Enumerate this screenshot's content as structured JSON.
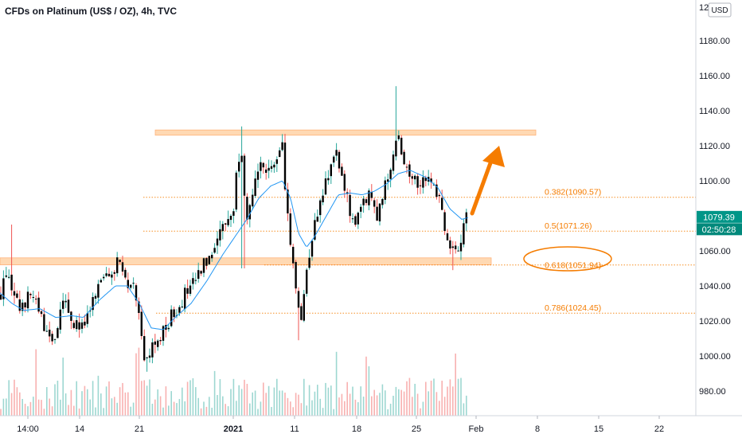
{
  "chart_data": {
    "type": "candlestick",
    "title": "CFDs on Platinum (US$ / OZ), 4h, TVC",
    "currency": "USD",
    "ylim": [
      960,
      1200
    ],
    "y_ticks": [
      980,
      1000,
      1020,
      1040,
      1060,
      1080,
      1100,
      1120,
      1140,
      1160,
      1180
    ],
    "y_tick_labels": [
      "980.00",
      "1000.00",
      "1020.00",
      "1040.00",
      "1060.00",
      "1080.00",
      "1100.00",
      "1120.00",
      "1140.00",
      "1160.00",
      "1180.00"
    ],
    "y_top_partial_label": "120",
    "x_ticks": [
      {
        "label": "14:00",
        "bold": false
      },
      {
        "label": "14",
        "bold": false
      },
      {
        "label": "21",
        "bold": false
      },
      {
        "label": "2021",
        "bold": true
      },
      {
        "label": "11",
        "bold": false
      },
      {
        "label": "18",
        "bold": false
      },
      {
        "label": "25",
        "bold": false
      },
      {
        "label": "Feb",
        "bold": false
      },
      {
        "label": "8",
        "bold": false
      },
      {
        "label": "15",
        "bold": false
      },
      {
        "label": "22",
        "bold": false
      }
    ],
    "price_anchors": [
      [
        0,
        1034
      ],
      [
        10,
        1052
      ],
      [
        15,
        1032
      ],
      [
        25,
        1028
      ],
      [
        40,
        1035
      ],
      [
        55,
        1018
      ],
      [
        65,
        1005
      ],
      [
        80,
        1030
      ],
      [
        92,
        1020
      ],
      [
        105,
        1015
      ],
      [
        115,
        1028
      ],
      [
        130,
        1045
      ],
      [
        140,
        1050
      ],
      [
        150,
        1053
      ],
      [
        160,
        1043
      ],
      [
        170,
        1038
      ],
      [
        178,
        1015
      ],
      [
        182,
        995
      ],
      [
        192,
        1005
      ],
      [
        200,
        1008
      ],
      [
        210,
        1018
      ],
      [
        220,
        1026
      ],
      [
        232,
        1035
      ],
      [
        242,
        1040
      ],
      [
        252,
        1048
      ],
      [
        262,
        1057
      ],
      [
        272,
        1068
      ],
      [
        285,
        1078
      ],
      [
        293,
        1082
      ],
      [
        298,
        1110
      ],
      [
        303,
        1122
      ],
      [
        310,
        1075
      ],
      [
        318,
        1090
      ],
      [
        325,
        1112
      ],
      [
        333,
        1100
      ],
      [
        340,
        1105
      ],
      [
        348,
        1115
      ],
      [
        355,
        1118
      ],
      [
        362,
        1075
      ],
      [
        366,
        1060
      ],
      [
        372,
        1040
      ],
      [
        378,
        1020
      ],
      [
        385,
        1048
      ],
      [
        393,
        1072
      ],
      [
        400,
        1083
      ],
      [
        408,
        1098
      ],
      [
        415,
        1110
      ],
      [
        422,
        1115
      ],
      [
        430,
        1100
      ],
      [
        440,
        1082
      ],
      [
        448,
        1075
      ],
      [
        455,
        1085
      ],
      [
        465,
        1092
      ],
      [
        475,
        1080
      ],
      [
        485,
        1098
      ],
      [
        492,
        1112
      ],
      [
        498,
        1128
      ],
      [
        505,
        1115
      ],
      [
        515,
        1105
      ],
      [
        525,
        1100
      ],
      [
        535,
        1103
      ],
      [
        545,
        1098
      ],
      [
        555,
        1085
      ],
      [
        562,
        1065
      ],
      [
        568,
        1058
      ],
      [
        575,
        1060
      ],
      [
        580,
        1068
      ],
      [
        584,
        1088
      ],
      [
        588,
        1079
      ]
    ],
    "ema_anchors": [
      [
        0,
        1036
      ],
      [
        15,
        1030
      ],
      [
        30,
        1026
      ],
      [
        50,
        1027
      ],
      [
        70,
        1022
      ],
      [
        90,
        1023
      ],
      [
        105,
        1022
      ],
      [
        125,
        1032
      ],
      [
        145,
        1040
      ],
      [
        160,
        1040
      ],
      [
        175,
        1030
      ],
      [
        190,
        1016
      ],
      [
        205,
        1015
      ],
      [
        220,
        1022
      ],
      [
        240,
        1030
      ],
      [
        260,
        1043
      ],
      [
        280,
        1058
      ],
      [
        295,
        1068
      ],
      [
        310,
        1078
      ],
      [
        325,
        1090
      ],
      [
        340,
        1097
      ],
      [
        355,
        1100
      ],
      [
        365,
        1090
      ],
      [
        375,
        1070
      ],
      [
        385,
        1062
      ],
      [
        395,
        1068
      ],
      [
        410,
        1080
      ],
      [
        425,
        1092
      ],
      [
        440,
        1093
      ],
      [
        455,
        1092
      ],
      [
        470,
        1094
      ],
      [
        485,
        1098
      ],
      [
        500,
        1104
      ],
      [
        515,
        1106
      ],
      [
        535,
        1102
      ],
      [
        550,
        1096
      ],
      [
        565,
        1084
      ],
      [
        580,
        1078
      ],
      [
        588,
        1079
      ]
    ],
    "zones": [
      {
        "x1": 195,
        "x2": 673,
        "y_low": 1126,
        "y_high": 1129
      },
      {
        "x1": 0,
        "x2": 617,
        "y_low": 1052,
        "y_high": 1056
      }
    ],
    "fib_levels": [
      {
        "value": 1090.57,
        "label": "0.382(1090.57)"
      },
      {
        "value": 1071.26,
        "label": "0.5(1071.26)"
      },
      {
        "value": 1051.94,
        "label": "0.618(1051.94)"
      },
      {
        "value": 1024.45,
        "label": "0.786(1024.45)"
      }
    ],
    "last_price": "1079.39",
    "countdown": "02:50:28",
    "colors": {
      "up": "#26a69a",
      "down": "#ef5350",
      "body": "#000000",
      "ema": "#2196f3",
      "fib": "#f57c00",
      "zone": "#ffcc99",
      "arrow": "#f57c00",
      "price_tag": "#009688",
      "countdown_tag": "#00897b"
    }
  }
}
